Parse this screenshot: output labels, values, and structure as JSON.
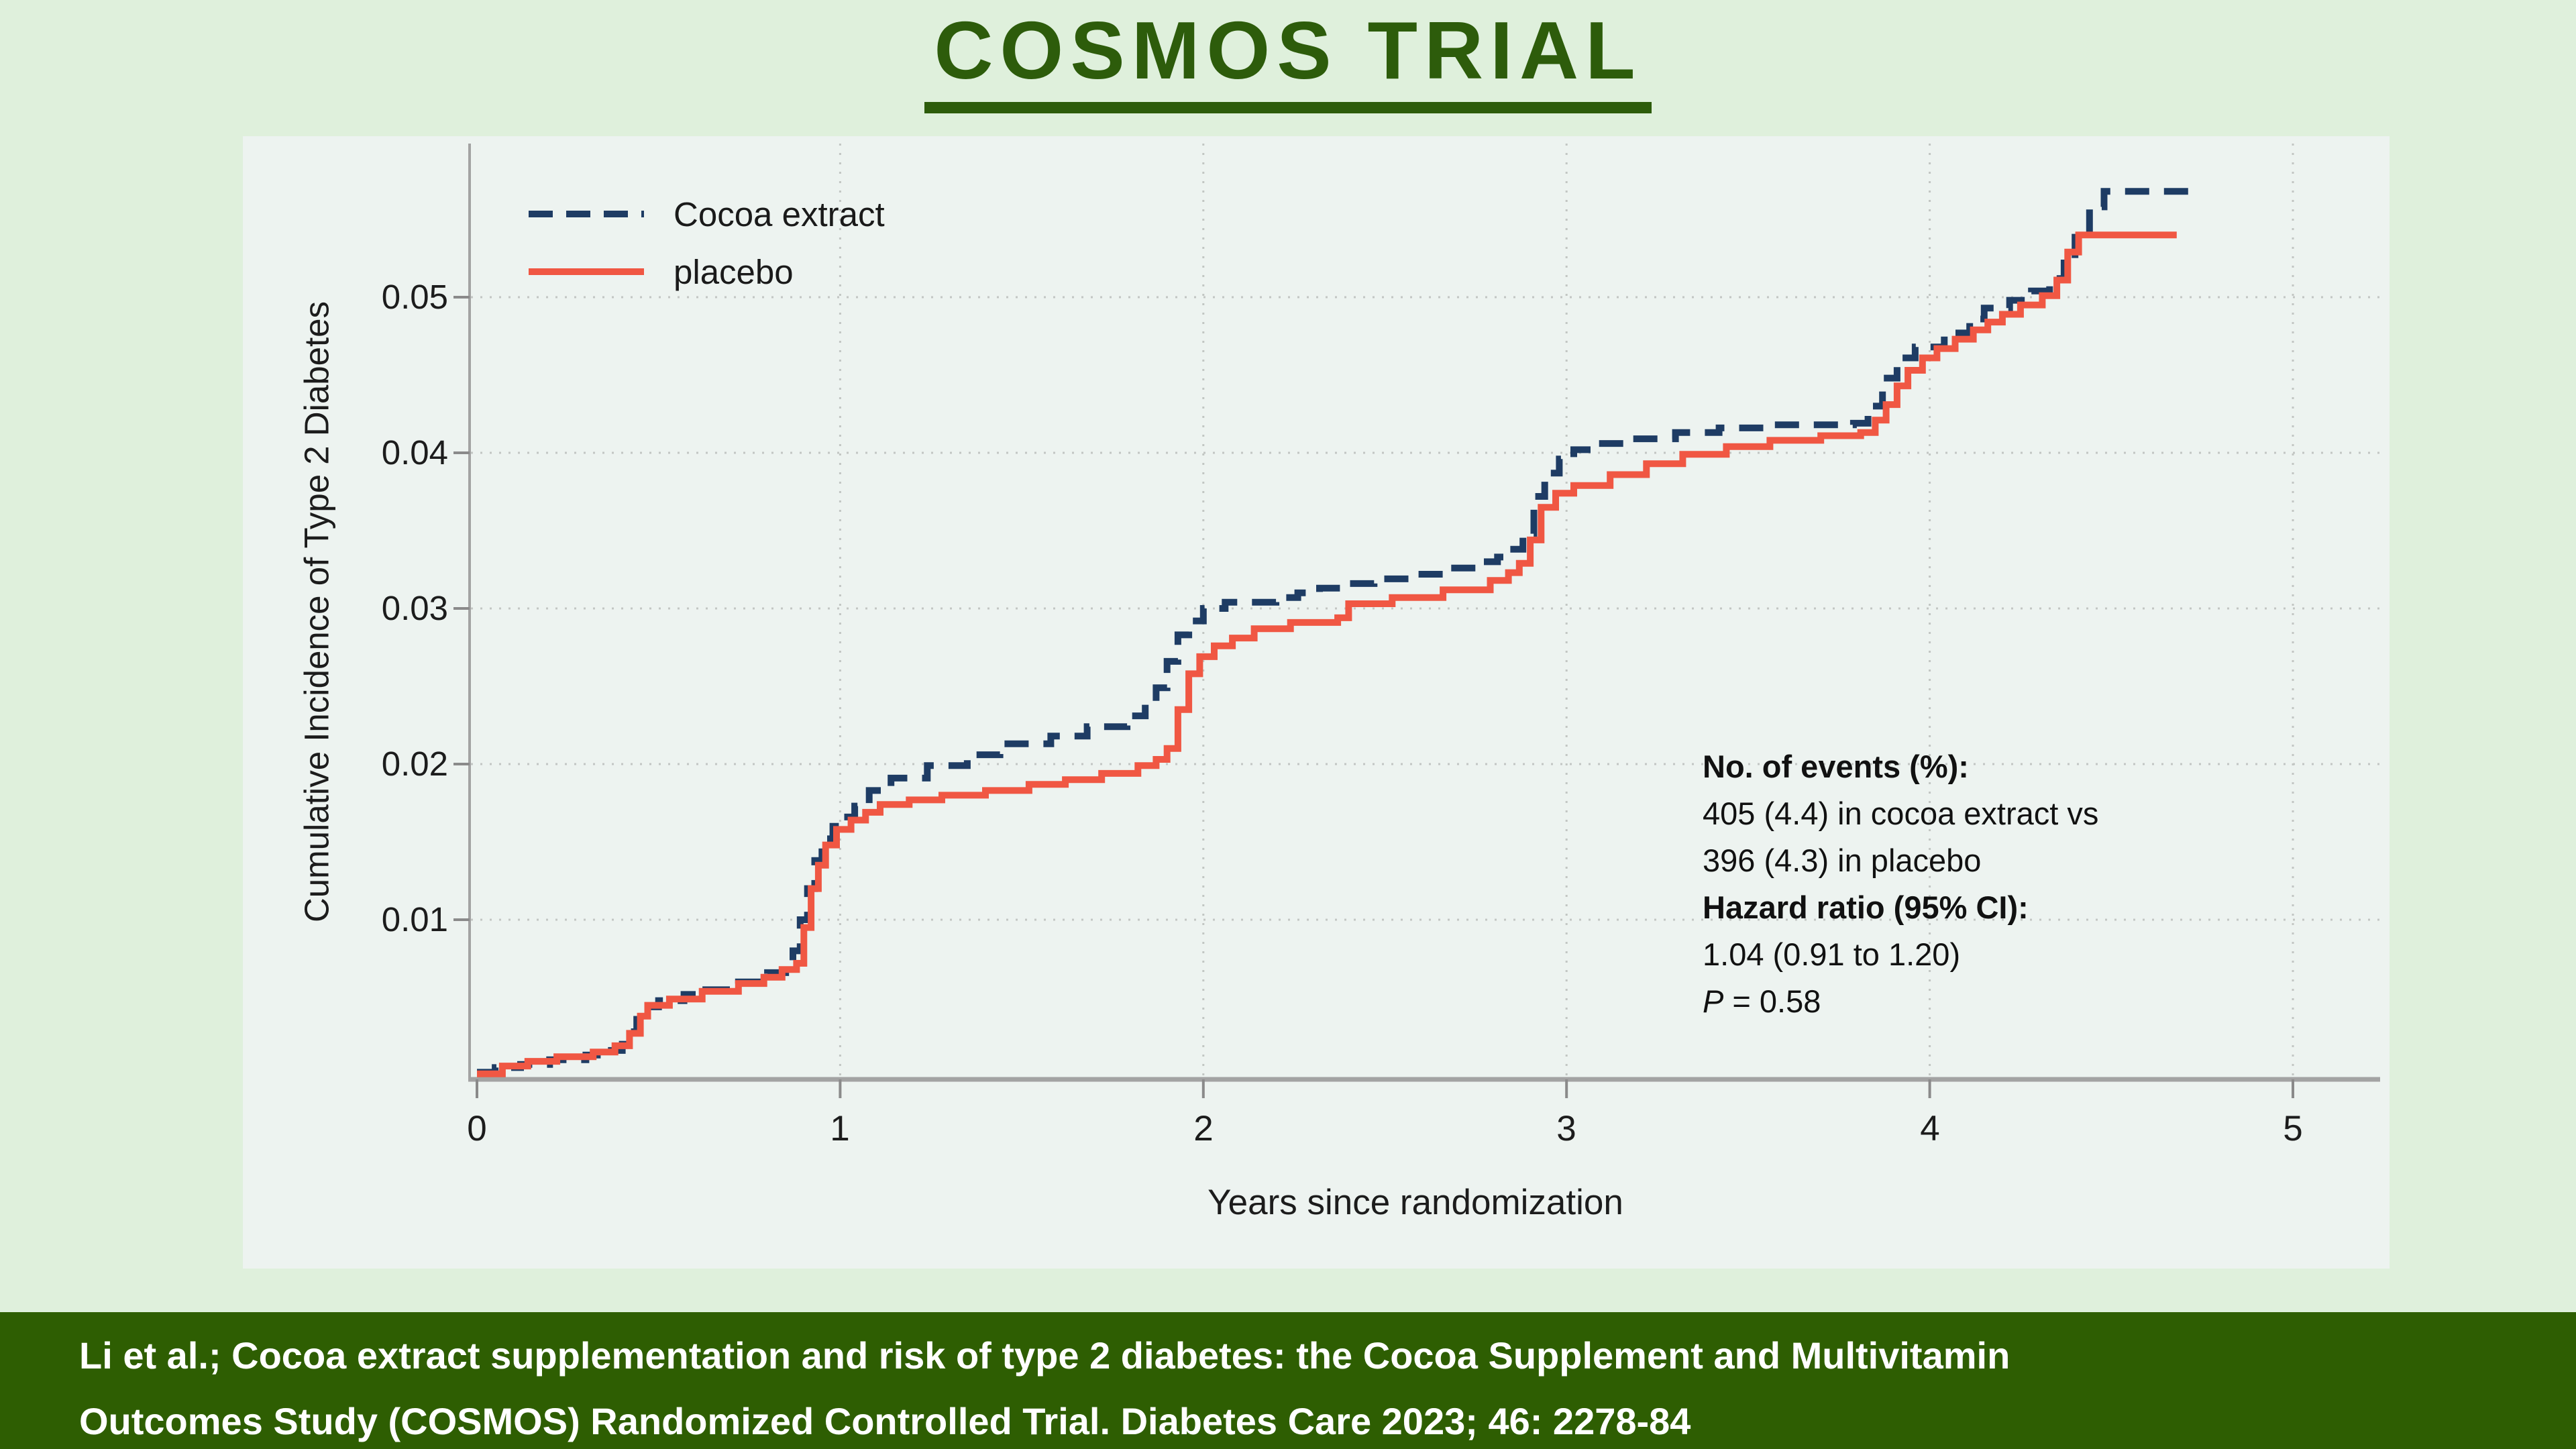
{
  "title": "COSMOS TRIAL",
  "colors": {
    "page_bg": "#dff0dc",
    "panel_bg": "#edf3f0",
    "title_green": "#2d5c0b",
    "bar_green": "#2e5e02",
    "cocoa": "#1e3c64",
    "placebo": "#f05743",
    "grid": "#c2c6c3",
    "axis": "#a3a3a3",
    "tick": "#8a8a8a"
  },
  "chart": {
    "legend": [
      {
        "label": "Cocoa extract",
        "style": "dashed",
        "color": "#1e3c64"
      },
      {
        "label": "placebo",
        "style": "solid",
        "color": "#f05743"
      }
    ],
    "y_axis": {
      "title": "Cumulative Incidence of Type 2 Diabetes",
      "ticks": [
        {
          "value": 0.05,
          "label": "0.05"
        },
        {
          "value": 0.04,
          "label": "0.04"
        },
        {
          "value": 0.03,
          "label": "0.03"
        },
        {
          "value": 0.02,
          "label": "0.02"
        },
        {
          "value": 0.01,
          "label": "0.01"
        }
      ]
    },
    "x_axis": {
      "title": "Years since randomization",
      "ticks": [
        {
          "value": 0,
          "label": "0"
        },
        {
          "value": 1,
          "label": "1"
        },
        {
          "value": 2,
          "label": "2"
        },
        {
          "value": 3,
          "label": "3"
        },
        {
          "value": 4,
          "label": "4"
        },
        {
          "value": 5,
          "label": "5"
        }
      ]
    },
    "annotation": {
      "line1": "No. of events (%):",
      "line2": "405 (4.4) in cocoa extract vs",
      "line3": "396 (4.3) in placebo",
      "line4": "Hazard ratio (95% CI):",
      "line5": "1.04 (0.91 to 1.20)",
      "line6_italic": "P",
      "line6_rest": " = 0.58"
    }
  },
  "chart_data": {
    "type": "line",
    "title": "COSMOS TRIAL",
    "xlabel": "Years since randomization",
    "ylabel": "Cumulative Incidence of Type 2 Diabetes",
    "xlim": [
      0,
      5.3
    ],
    "ylim": [
      0,
      0.058
    ],
    "grid": "dotted both axes at each tick",
    "legend_position": "top-left inside plot",
    "step_interpolation": "step-after",
    "series": [
      {
        "name": "Cocoa extract",
        "color": "#1e3c64",
        "line_style": "dashed",
        "events_label": "405 (4.4)",
        "points": [
          [
            0,
            0.0002
          ],
          [
            0.05,
            0.0005
          ],
          [
            0.12,
            0.0007
          ],
          [
            0.2,
            0.001
          ],
          [
            0.3,
            0.0013
          ],
          [
            0.37,
            0.0016
          ],
          [
            0.4,
            0.002
          ],
          [
            0.42,
            0.0028
          ],
          [
            0.44,
            0.0036
          ],
          [
            0.46,
            0.0044
          ],
          [
            0.5,
            0.0048
          ],
          [
            0.57,
            0.0052
          ],
          [
            0.63,
            0.0055
          ],
          [
            0.72,
            0.006
          ],
          [
            0.8,
            0.0066
          ],
          [
            0.85,
            0.0072
          ],
          [
            0.87,
            0.008
          ],
          [
            0.89,
            0.01
          ],
          [
            0.91,
            0.012
          ],
          [
            0.93,
            0.0138
          ],
          [
            0.95,
            0.0152
          ],
          [
            0.98,
            0.016
          ],
          [
            1.0,
            0.0166
          ],
          [
            1.04,
            0.0173
          ],
          [
            1.08,
            0.0183
          ],
          [
            1.14,
            0.0191
          ],
          [
            1.24,
            0.0199
          ],
          [
            1.35,
            0.0206
          ],
          [
            1.44,
            0.0213
          ],
          [
            1.58,
            0.0218
          ],
          [
            1.68,
            0.0224
          ],
          [
            1.79,
            0.0231
          ],
          [
            1.84,
            0.0239
          ],
          [
            1.87,
            0.0249
          ],
          [
            1.9,
            0.0266
          ],
          [
            1.93,
            0.0283
          ],
          [
            1.96,
            0.0292
          ],
          [
            2.0,
            0.03
          ],
          [
            2.06,
            0.0304
          ],
          [
            2.2,
            0.0307
          ],
          [
            2.26,
            0.031
          ],
          [
            2.32,
            0.0313
          ],
          [
            2.38,
            0.0316
          ],
          [
            2.47,
            0.0319
          ],
          [
            2.57,
            0.0322
          ],
          [
            2.66,
            0.0326
          ],
          [
            2.76,
            0.033
          ],
          [
            2.81,
            0.0333
          ],
          [
            2.84,
            0.0338
          ],
          [
            2.88,
            0.0348
          ],
          [
            2.91,
            0.0372
          ],
          [
            2.94,
            0.0387
          ],
          [
            2.98,
            0.0396
          ],
          [
            3.02,
            0.0402
          ],
          [
            3.08,
            0.0406
          ],
          [
            3.18,
            0.0409
          ],
          [
            3.3,
            0.0413
          ],
          [
            3.42,
            0.0416
          ],
          [
            3.55,
            0.0418
          ],
          [
            3.79,
            0.0419
          ],
          [
            3.83,
            0.043
          ],
          [
            3.87,
            0.0448
          ],
          [
            3.91,
            0.0461
          ],
          [
            3.96,
            0.0468
          ],
          [
            4.04,
            0.0477
          ],
          [
            4.11,
            0.0486
          ],
          [
            4.15,
            0.0493
          ],
          [
            4.22,
            0.0498
          ],
          [
            4.28,
            0.0504
          ],
          [
            4.33,
            0.0512
          ],
          [
            4.37,
            0.0522
          ],
          [
            4.4,
            0.0542
          ],
          [
            4.44,
            0.0558
          ],
          [
            4.48,
            0.0568
          ],
          [
            4.72,
            0.057
          ]
        ]
      },
      {
        "name": "placebo",
        "color": "#f05743",
        "line_style": "solid",
        "events_label": "396 (4.3)",
        "points": [
          [
            0,
            0.0001
          ],
          [
            0.07,
            0.0006
          ],
          [
            0.14,
            0.0009
          ],
          [
            0.22,
            0.0012
          ],
          [
            0.32,
            0.0015
          ],
          [
            0.38,
            0.0019
          ],
          [
            0.42,
            0.0027
          ],
          [
            0.45,
            0.0038
          ],
          [
            0.47,
            0.0045
          ],
          [
            0.53,
            0.0049
          ],
          [
            0.62,
            0.0054
          ],
          [
            0.72,
            0.0059
          ],
          [
            0.79,
            0.0063
          ],
          [
            0.84,
            0.0068
          ],
          [
            0.88,
            0.0072
          ],
          [
            0.9,
            0.0095
          ],
          [
            0.92,
            0.012
          ],
          [
            0.94,
            0.0135
          ],
          [
            0.96,
            0.0148
          ],
          [
            0.99,
            0.0158
          ],
          [
            1.03,
            0.0164
          ],
          [
            1.07,
            0.0169
          ],
          [
            1.11,
            0.0174
          ],
          [
            1.19,
            0.0177
          ],
          [
            1.28,
            0.018
          ],
          [
            1.4,
            0.0183
          ],
          [
            1.52,
            0.0187
          ],
          [
            1.62,
            0.019
          ],
          [
            1.72,
            0.0194
          ],
          [
            1.82,
            0.0199
          ],
          [
            1.87,
            0.0203
          ],
          [
            1.9,
            0.021
          ],
          [
            1.93,
            0.0235
          ],
          [
            1.96,
            0.0258
          ],
          [
            1.99,
            0.0269
          ],
          [
            2.03,
            0.0276
          ],
          [
            2.08,
            0.0281
          ],
          [
            2.14,
            0.0287
          ],
          [
            2.24,
            0.0291
          ],
          [
            2.37,
            0.0294
          ],
          [
            2.4,
            0.0303
          ],
          [
            2.52,
            0.0307
          ],
          [
            2.66,
            0.0312
          ],
          [
            2.79,
            0.0318
          ],
          [
            2.84,
            0.0323
          ],
          [
            2.87,
            0.0329
          ],
          [
            2.9,
            0.0344
          ],
          [
            2.93,
            0.0365
          ],
          [
            2.97,
            0.0374
          ],
          [
            3.02,
            0.0379
          ],
          [
            3.12,
            0.0386
          ],
          [
            3.22,
            0.0393
          ],
          [
            3.32,
            0.0399
          ],
          [
            3.44,
            0.0404
          ],
          [
            3.56,
            0.0408
          ],
          [
            3.7,
            0.0411
          ],
          [
            3.81,
            0.0413
          ],
          [
            3.85,
            0.0421
          ],
          [
            3.88,
            0.0431
          ],
          [
            3.91,
            0.0443
          ],
          [
            3.94,
            0.0453
          ],
          [
            3.98,
            0.0461
          ],
          [
            4.02,
            0.0467
          ],
          [
            4.07,
            0.0473
          ],
          [
            4.12,
            0.0479
          ],
          [
            4.16,
            0.0484
          ],
          [
            4.2,
            0.0489
          ],
          [
            4.25,
            0.0495
          ],
          [
            4.31,
            0.0501
          ],
          [
            4.35,
            0.0511
          ],
          [
            4.38,
            0.0529
          ],
          [
            4.41,
            0.054
          ],
          [
            4.68,
            0.054
          ]
        ]
      }
    ]
  },
  "citation": {
    "line1": "Li et al.; Cocoa extract supplementation and risk of type 2 diabetes: the Cocoa Supplement and Multivitamin",
    "line2": "Outcomes Study (COSMOS) Randomized Controlled Trial. Diabetes Care 2023; 46: 2278-84"
  }
}
